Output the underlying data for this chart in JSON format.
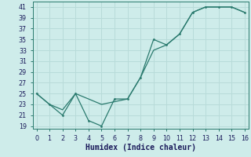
{
  "xlabel": "Humidex (Indice chaleur)",
  "x_zigzag": [
    0,
    1,
    2,
    3,
    4,
    5,
    6,
    7,
    8,
    9,
    10,
    11,
    12,
    13,
    14,
    15,
    16
  ],
  "y_zigzag": [
    25,
    23,
    21,
    25,
    20,
    19,
    24,
    24,
    28,
    35,
    34,
    36,
    40,
    41,
    41,
    41,
    40
  ],
  "x_smooth": [
    0,
    1,
    2,
    3,
    5,
    7,
    8,
    9,
    10,
    11,
    12,
    13,
    14,
    15,
    16
  ],
  "y_smooth": [
    25,
    23,
    22,
    25,
    23,
    24,
    28,
    33,
    34,
    36,
    40,
    41,
    41,
    41,
    40
  ],
  "line_color": "#2a7a6e",
  "bg_color": "#ceecea",
  "grid_color": "#b8dbd9",
  "ylim": [
    18.5,
    42
  ],
  "xlim": [
    -0.3,
    16.3
  ],
  "yticks": [
    19,
    21,
    23,
    25,
    27,
    29,
    31,
    33,
    35,
    37,
    39,
    41
  ],
  "xticks": [
    0,
    1,
    2,
    3,
    4,
    5,
    6,
    7,
    8,
    9,
    10,
    11,
    12,
    13,
    14,
    15,
    16
  ],
  "tick_fontsize": 5.8,
  "label_fontsize": 7.0
}
